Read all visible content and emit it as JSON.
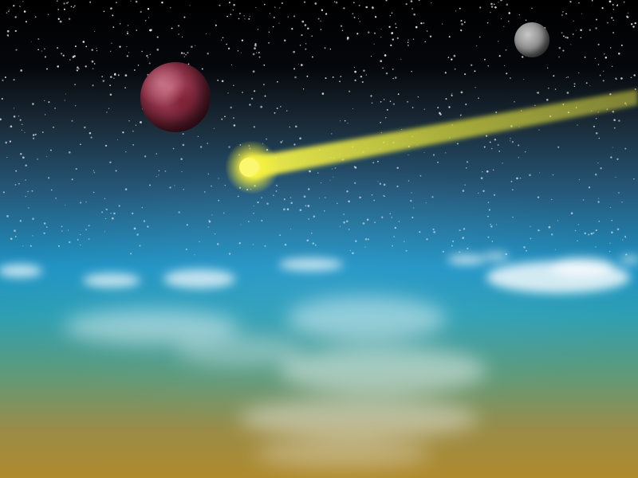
{
  "scene": {
    "description_colors": {
      "space": "#000000",
      "sky_blue": "#1f93c4",
      "horizon_gold": "#b08a2c",
      "comet": "#f4f040",
      "red_planet": "#8a2f45",
      "moon": "#8e8e8e"
    }
  }
}
